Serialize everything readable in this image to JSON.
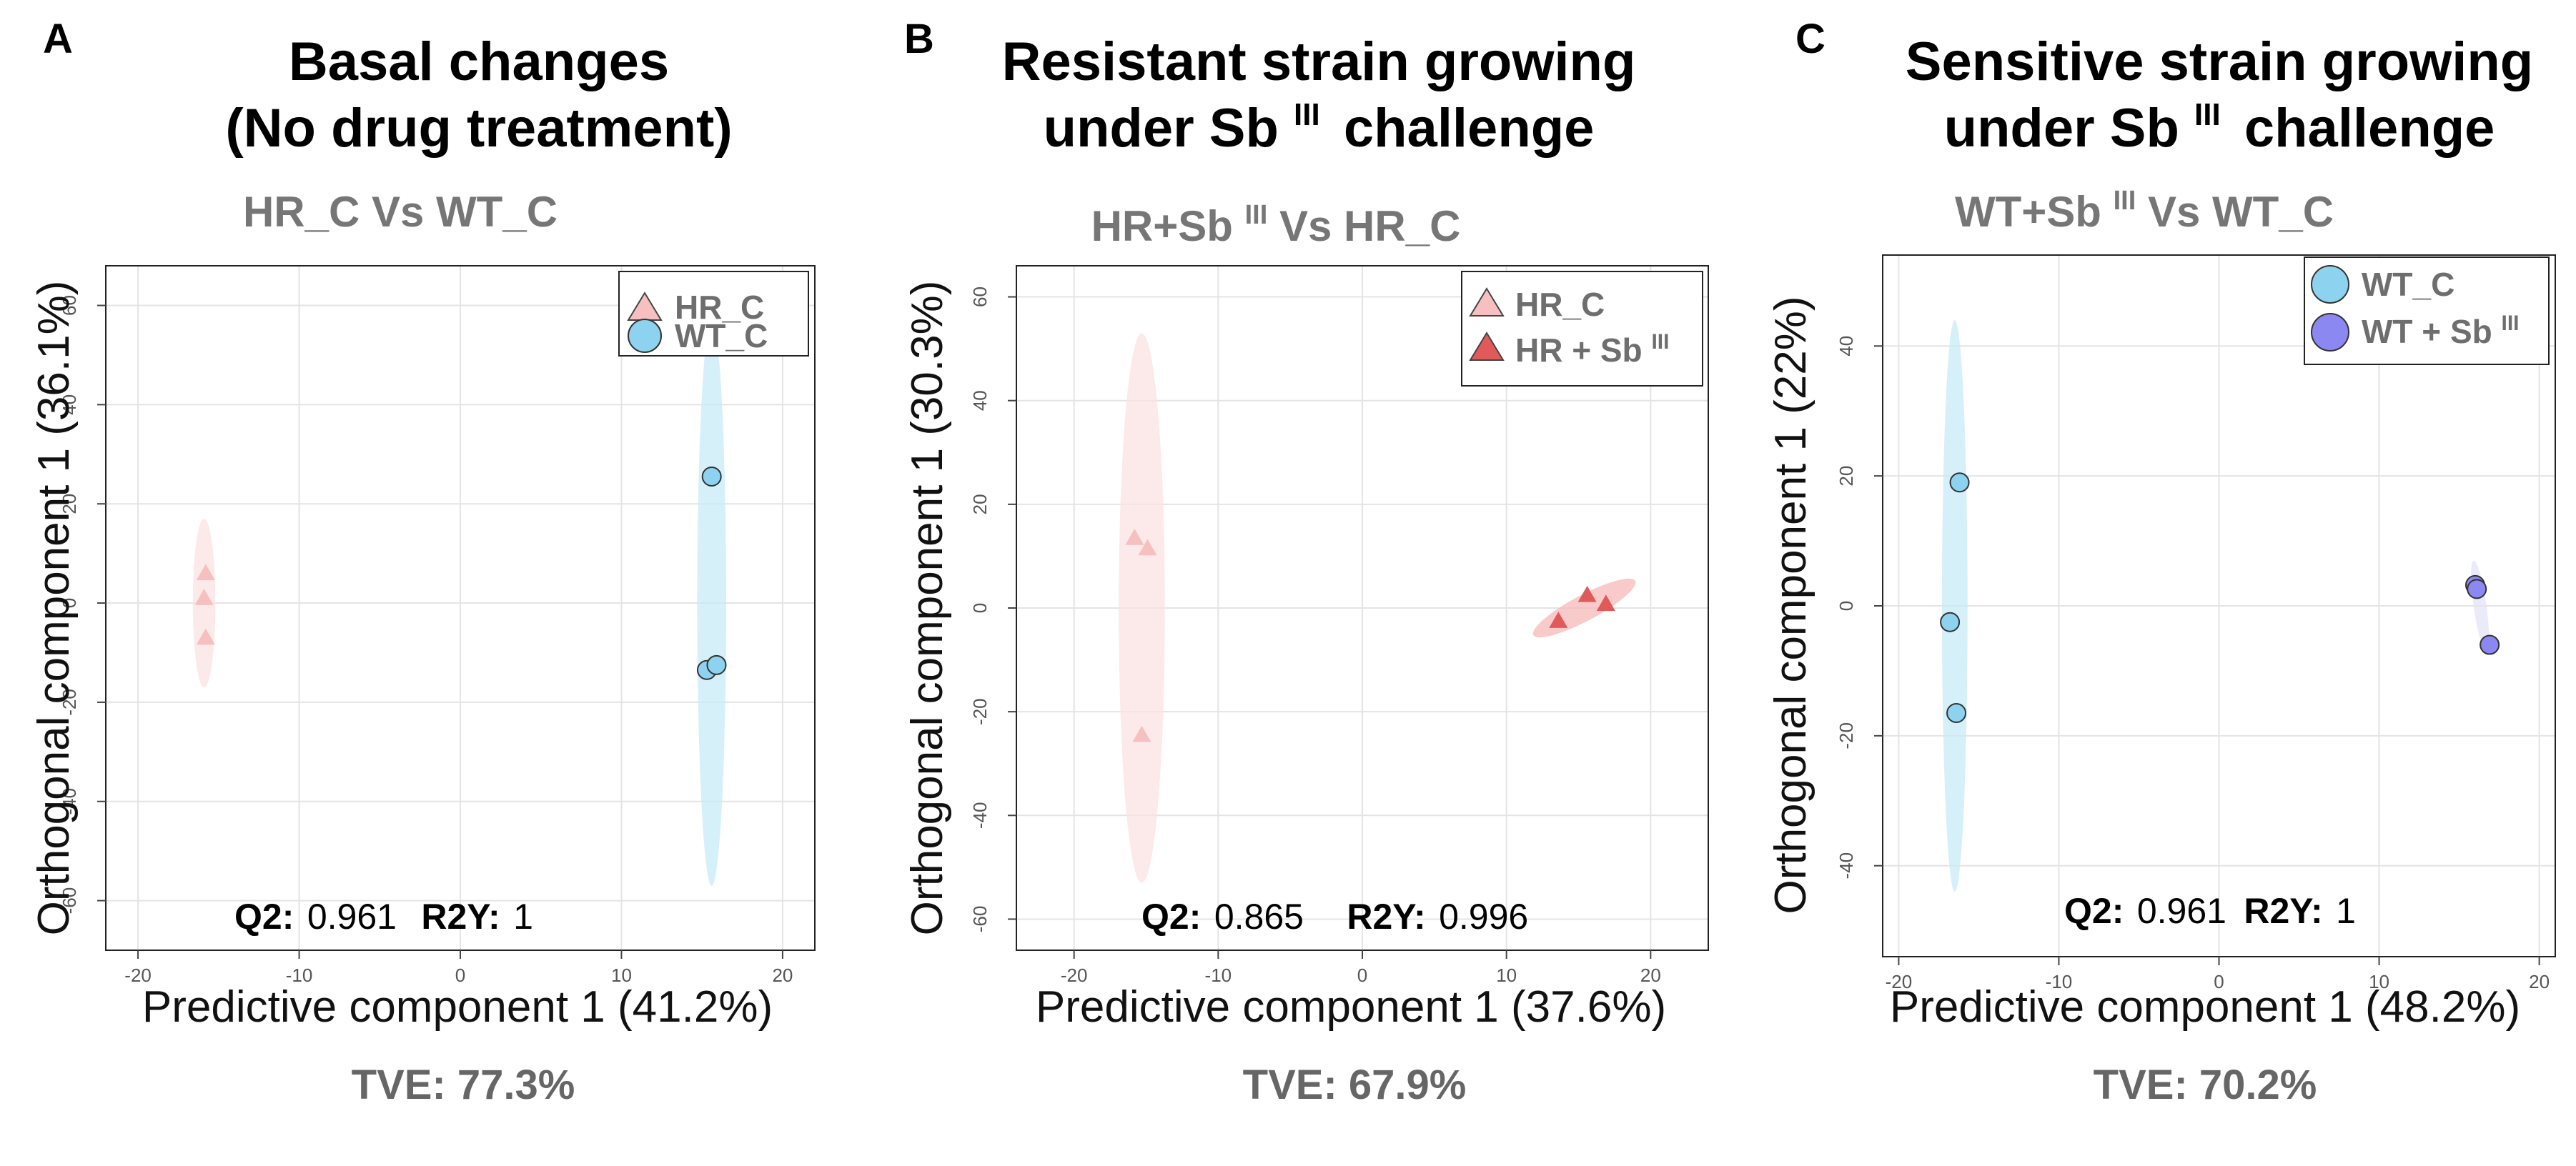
{
  "chart_data": [
    {
      "type": "scatter",
      "panel": "A",
      "title_lines": [
        "Basal changes",
        "(No drug treatment)"
      ],
      "subtitle": "HR_C Vs WT_C",
      "xlabel": "Predictive component 1 (41.2%)",
      "ylabel": "Orthogonal component 1  (36.1%)",
      "xlim": [
        -22,
        22
      ],
      "ylim": [
        -70,
        68
      ],
      "xticks": [
        -20,
        -10,
        0,
        10,
        20
      ],
      "yticks": [
        -60,
        -40,
        -20,
        0,
        20,
        40,
        60
      ],
      "q2_label": "Q2:",
      "q2_value": "0.961",
      "r2y_label": "R2Y:",
      "r2y_value": "1",
      "tve_text": "TVE: 77.3%",
      "legend": [
        {
          "label": "HR_C",
          "marker": "triangle",
          "color": "#f6c0c0"
        },
        {
          "label": "WT_C",
          "marker": "circle",
          "color": "#8dd2ee"
        }
      ],
      "series": [
        {
          "name": "HR_C",
          "marker": "triangle",
          "color": "#f6c0c0",
          "points": [
            [
              -15.8,
              6
            ],
            [
              -15.9,
              1
            ],
            [
              -15.8,
              -7
            ]
          ],
          "ellipse": {
            "cx": -15.9,
            "cy": 0,
            "rx": 0.7,
            "ry": 17,
            "angle": 0,
            "color": "#fbe1e1"
          }
        },
        {
          "name": "WT_C",
          "marker": "circle",
          "color": "#8dd2ee",
          "points": [
            [
              15.6,
              25.5
            ],
            [
              15.3,
              -13.5
            ],
            [
              15.9,
              -12.5
            ]
          ],
          "ellipse": {
            "cx": 15.6,
            "cy": 0,
            "rx": 0.9,
            "ry": 57,
            "angle": 0,
            "color": "#c8ebf7"
          }
        }
      ]
    },
    {
      "type": "scatter",
      "panel": "B",
      "title_lines": [
        "Resistant strain growing",
        "under Sb",
        "challenge"
      ],
      "title_sup": "III",
      "subtitle_parts": [
        "HR+Sb",
        "III",
        " Vs HR_C"
      ],
      "xlabel": "Predictive component 1 (37.6%)",
      "ylabel": "Orthogonal component 1  (30.3%)",
      "xlim": [
        -24,
        24
      ],
      "ylim": [
        -66,
        66
      ],
      "xticks": [
        -20,
        -10,
        0,
        10,
        20
      ],
      "yticks": [
        -60,
        -40,
        -20,
        0,
        20,
        40,
        60
      ],
      "q2_label": "Q2:",
      "q2_value": "0.865",
      "r2y_label": "R2Y:",
      "r2y_value": "0.996",
      "tve_text": "TVE: 67.9%",
      "legend": [
        {
          "label": "HR_C",
          "marker": "triangle",
          "color": "#f6c0c0"
        },
        {
          "label": "HR + Sb",
          "sup": "III",
          "marker": "triangle",
          "color": "#e05a5a"
        }
      ],
      "series": [
        {
          "name": "HR_C",
          "marker": "triangle",
          "color": "#f6c0c0",
          "points": [
            [
              -15.8,
              13.5
            ],
            [
              -14.9,
              11.5
            ],
            [
              -15.3,
              -24.5
            ]
          ],
          "ellipse": {
            "cx": -15.3,
            "cy": 0,
            "rx": 1.6,
            "ry": 53,
            "angle": 0,
            "color": "#fbe1e1"
          }
        },
        {
          "name": "HR + Sb",
          "marker": "triangle",
          "color": "#e05a5a",
          "points": [
            [
              13.6,
              -2.5
            ],
            [
              15.6,
              2.5
            ],
            [
              16.9,
              0.8
            ]
          ],
          "ellipse": {
            "cx": 15.4,
            "cy": 0,
            "rx": 4,
            "ry": 2.5,
            "angle": 28,
            "color": "#f7b8b8"
          }
        }
      ]
    },
    {
      "type": "scatter",
      "panel": "C",
      "title_lines": [
        "Sensitive strain growing",
        "under Sb",
        "challenge"
      ],
      "title_sup": "III",
      "subtitle_parts": [
        "WT+Sb",
        "III",
        " Vs WT_C"
      ],
      "xlabel": "Predictive component 1 (48.2%)",
      "ylabel": "Orthogonal component 1  (22%)",
      "xlim": [
        -21,
        21
      ],
      "ylim": [
        -54,
        54
      ],
      "xticks": [
        -20,
        -10,
        0,
        10,
        20
      ],
      "yticks": [
        -40,
        -20,
        0,
        20,
        40
      ],
      "q2_label": "Q2:",
      "q2_value": "0.961",
      "r2y_label": "R2Y:",
      "r2y_value": "1",
      "tve_text": "TVE: 70.2%",
      "legend": [
        {
          "label": "WT_C",
          "marker": "circle",
          "color": "#8dd2ee"
        },
        {
          "label": "WT + Sb",
          "sup": "III",
          "marker": "circle",
          "color": "#8b88f2"
        }
      ],
      "series": [
        {
          "name": "WT_C",
          "marker": "circle",
          "color": "#8dd2ee",
          "points": [
            [
              -16.2,
              19
            ],
            [
              -16.8,
              -2.5
            ],
            [
              -16.4,
              -16.5
            ]
          ],
          "ellipse": {
            "cx": -16.5,
            "cy": 0,
            "rx": 0.8,
            "ry": 44,
            "angle": 0,
            "color": "#c8ebf7"
          }
        },
        {
          "name": "WT + Sb",
          "marker": "circle",
          "color": "#8b88f2",
          "points": [
            [
              16.0,
              3.2
            ],
            [
              16.1,
              2.6
            ],
            [
              16.9,
              -6
            ]
          ],
          "ellipse": {
            "cx": 16.3,
            "cy": 0,
            "rx": 0.4,
            "ry": 7,
            "angle": 8,
            "color": "#e4e3f7"
          }
        }
      ]
    }
  ]
}
